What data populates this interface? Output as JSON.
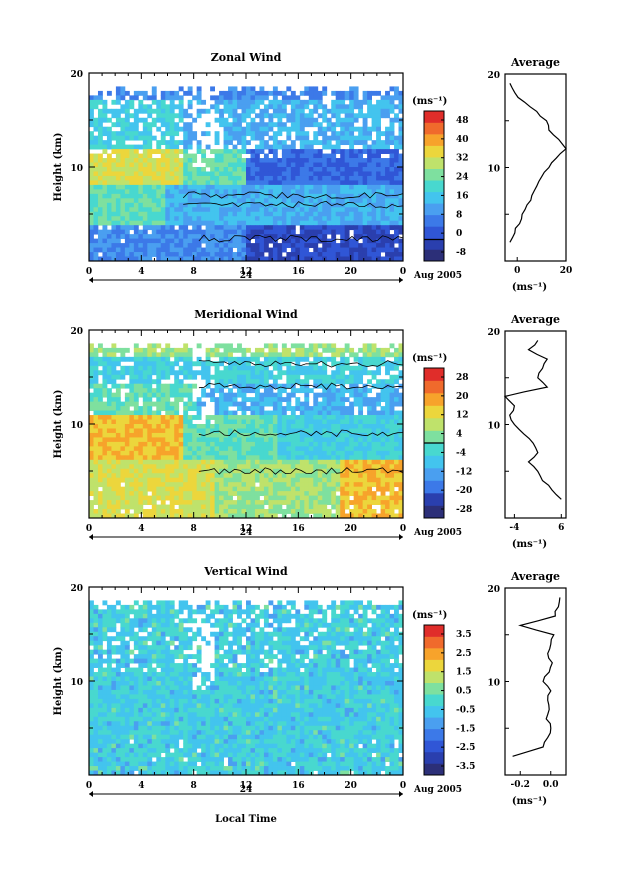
{
  "figure": {
    "xlabel": "Local Time"
  },
  "colors": {
    "zonal_scale": [
      "#2c2f78",
      "#2a3fae",
      "#3056d6",
      "#3c79e8",
      "#4a9ff0",
      "#43c4ee",
      "#48d8cf",
      "#7ee09f",
      "#bfe26b",
      "#ecd63c",
      "#f7a32b",
      "#f06a2c",
      "#e02d2a"
    ],
    "meridional_scale": [
      "#2c2f78",
      "#2a3fae",
      "#3c79e8",
      "#4a9ff0",
      "#43c4ee",
      "#48d8cf",
      "#7ee09f",
      "#bfe26b",
      "#ecd63c",
      "#f7a32b",
      "#f06a2c",
      "#e02d2a"
    ],
    "vertical_scale": [
      "#2c2f78",
      "#2a3fae",
      "#3056d6",
      "#3c79e8",
      "#4a9ff0",
      "#43c4ee",
      "#48d8cf",
      "#7ee09f",
      "#bfe26b",
      "#ecd63c",
      "#f7a32b",
      "#f06a2c",
      "#e02d2a"
    ]
  },
  "chart_data": [
    {
      "type": "heatmap",
      "title": "Zonal Wind",
      "ylabel": "Height (km)",
      "x_ticks": [
        "0",
        "4",
        "8",
        "12",
        "16",
        "20",
        "0"
      ],
      "date_label": "24",
      "date_suffix": "Aug 2005",
      "xlim": [
        0,
        24
      ],
      "ylim": [
        0,
        20
      ],
      "y_ticks": [
        "20",
        "10"
      ],
      "colorbar": {
        "unit": "(ms⁻¹)",
        "ticks": [
          "48",
          "40",
          "32",
          "24",
          "16",
          "8",
          "0",
          "-8"
        ],
        "range": [
          -8,
          48
        ],
        "contour_level": 0
      },
      "profile": {
        "title": "Average",
        "xlabel": "(ms⁻¹)",
        "x_ticks": [
          "0",
          "20"
        ],
        "xlim": [
          -5,
          20
        ],
        "y_ticks": [
          "20",
          "10"
        ],
        "heights": [
          2,
          3,
          4,
          5,
          6,
          7,
          8,
          9,
          10,
          11,
          12,
          13,
          14,
          15,
          16,
          17,
          18,
          19
        ],
        "values": [
          -3,
          -1,
          1,
          2,
          4,
          6,
          8,
          10,
          13,
          16,
          20,
          17,
          13,
          12,
          8,
          3,
          -1,
          -3
        ]
      }
    },
    {
      "type": "heatmap",
      "title": "Meridional Wind",
      "ylabel": "Height (km)",
      "x_ticks": [
        "0",
        "4",
        "8",
        "12",
        "16",
        "20",
        "0"
      ],
      "date_label": "24",
      "date_suffix": "Aug 2005",
      "xlim": [
        0,
        24
      ],
      "ylim": [
        0,
        20
      ],
      "y_ticks": [
        "20",
        "10"
      ],
      "colorbar": {
        "unit": "(ms⁻¹)",
        "ticks": [
          "28",
          "20",
          "12",
          "4",
          "-4",
          "-12",
          "-20",
          "-28"
        ],
        "range": [
          -28,
          28
        ],
        "contour_level": 0
      },
      "profile": {
        "title": "Average",
        "xlabel": "(ms⁻¹)",
        "x_ticks": [
          "-4",
          "6"
        ],
        "xlim": [
          -6,
          7
        ],
        "y_ticks": [
          "20",
          "10"
        ],
        "heights": [
          2,
          3,
          4,
          5,
          6,
          7,
          8,
          9,
          10,
          11,
          12,
          13,
          14,
          15,
          16,
          17,
          18,
          19
        ],
        "values": [
          6,
          4,
          2,
          1,
          -1,
          1,
          0,
          -2,
          -4,
          -5,
          -4,
          -6,
          3,
          1,
          2,
          3,
          -1,
          1
        ]
      }
    },
    {
      "type": "heatmap",
      "title": "Vertical Wind",
      "ylabel": "Height (km)",
      "x_ticks": [
        "0",
        "4",
        "8",
        "12",
        "16",
        "20",
        "0"
      ],
      "date_label": "24",
      "date_suffix": "Aug 2005",
      "xlim": [
        0,
        24
      ],
      "ylim": [
        0,
        20
      ],
      "y_ticks": [
        "20",
        "10"
      ],
      "colorbar": {
        "unit": "(ms⁻¹)",
        "ticks": [
          "3.5",
          "2.5",
          "1.5",
          "0.5",
          "-0.5",
          "-1.5",
          "-2.5",
          "-3.5"
        ],
        "range": [
          -3.5,
          3.5
        ]
      },
      "profile": {
        "title": "Average",
        "xlabel": "(ms⁻¹)",
        "x_ticks": [
          "-0.2",
          "0.0"
        ],
        "xlim": [
          -0.3,
          0.1
        ],
        "y_ticks": [
          "20",
          "10"
        ],
        "heights": [
          2,
          3,
          4,
          5,
          6,
          7,
          8,
          9,
          10,
          11,
          12,
          13,
          14,
          15,
          16,
          17,
          18,
          19
        ],
        "values": [
          -0.25,
          -0.05,
          -0.02,
          0.0,
          -0.03,
          -0.01,
          -0.02,
          0.0,
          -0.05,
          -0.01,
          0.01,
          -0.02,
          0.0,
          0.02,
          -0.2,
          0.03,
          0.05,
          0.06
        ]
      }
    }
  ]
}
